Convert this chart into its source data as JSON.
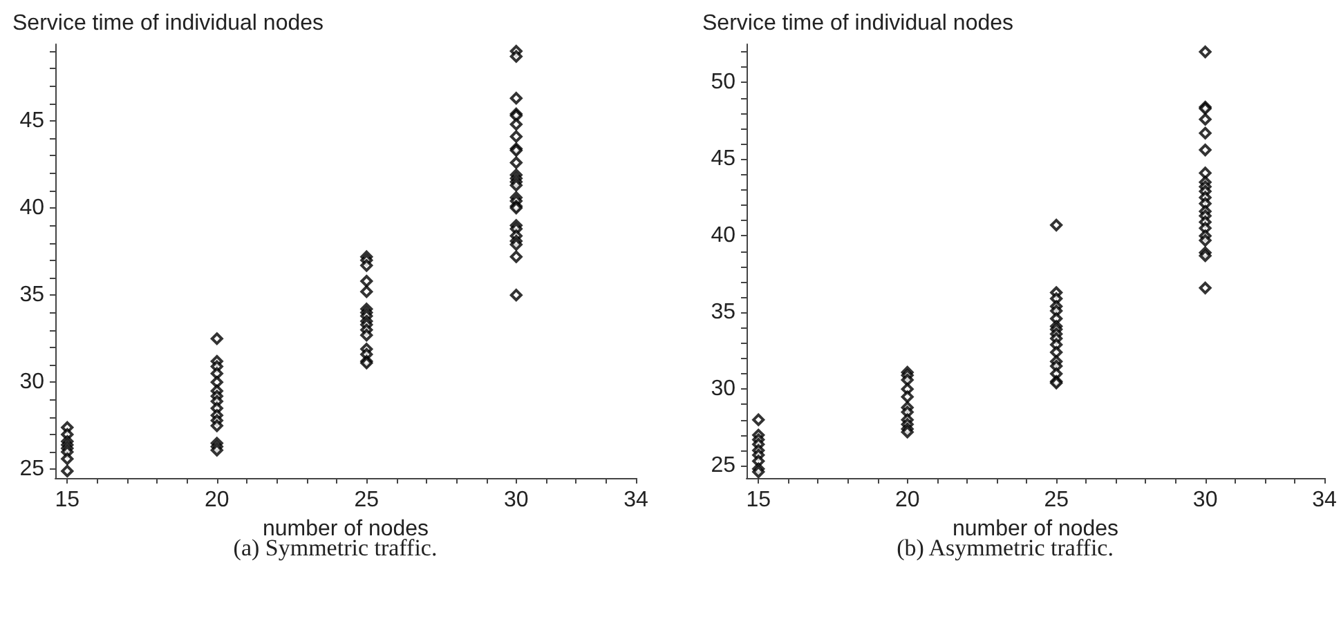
{
  "chart_data": [
    {
      "type": "scatter",
      "title": "Service time of individual nodes",
      "xlabel": "number of nodes",
      "annotations": [
        "(a) Symmetric traffic."
      ],
      "marker": "diamond",
      "grid": false,
      "xlim": [
        14.6,
        34
      ],
      "ylim": [
        24.5,
        49.4
      ],
      "xticks": [
        15,
        {
          "value": 16,
          "label": null
        },
        {
          "value": 17,
          "label": null
        },
        {
          "value": 18,
          "label": null
        },
        {
          "value": 19,
          "label": null
        },
        20,
        {
          "value": 21,
          "label": null
        },
        {
          "value": 22,
          "label": null
        },
        {
          "value": 23,
          "label": null
        },
        {
          "value": 24,
          "label": null
        },
        25,
        {
          "value": 26,
          "label": null
        },
        {
          "value": 27,
          "label": null
        },
        {
          "value": 28,
          "label": null
        },
        {
          "value": 29,
          "label": null
        },
        30,
        {
          "value": 31,
          "label": null
        },
        {
          "value": 32,
          "label": null
        },
        {
          "value": 33,
          "label": null
        },
        34
      ],
      "yticks": [
        25,
        {
          "value": 26,
          "label": null
        },
        {
          "value": 27,
          "label": null
        },
        {
          "value": 28,
          "label": null
        },
        {
          "value": 29,
          "label": null
        },
        30,
        {
          "value": 31,
          "label": null
        },
        {
          "value": 32,
          "label": null
        },
        {
          "value": 33,
          "label": null
        },
        {
          "value": 34,
          "label": null
        },
        35,
        {
          "value": 36,
          "label": null
        },
        {
          "value": 37,
          "label": null
        },
        {
          "value": 38,
          "label": null
        },
        {
          "value": 39,
          "label": null
        },
        40,
        {
          "value": 41,
          "label": null
        },
        {
          "value": 42,
          "label": null
        },
        {
          "value": 43,
          "label": null
        },
        {
          "value": 44,
          "label": null
        },
        45,
        {
          "value": 46,
          "label": null
        },
        {
          "value": 47,
          "label": null
        },
        {
          "value": 48,
          "label": null
        },
        {
          "value": 49,
          "label": null
        }
      ],
      "series": [
        {
          "color": "#000000",
          "x": [
            15,
            15,
            15,
            15,
            15,
            15,
            15,
            15,
            20,
            20,
            20,
            20,
            20,
            20,
            20,
            20,
            20,
            20,
            20,
            20,
            20,
            20,
            20,
            25,
            25,
            25,
            25,
            25,
            25,
            25,
            25,
            25,
            25,
            25,
            25,
            25,
            25,
            25,
            25,
            30,
            30,
            30,
            30,
            30,
            30,
            30,
            30,
            30,
            30,
            30,
            30,
            30,
            30,
            30,
            30,
            30,
            30,
            30,
            30,
            30,
            30,
            30,
            30,
            30
          ],
          "values": [
            27.4,
            27.0,
            26.6,
            26.4,
            26.2,
            26.0,
            25.6,
            24.9,
            32.5,
            31.2,
            30.9,
            30.5,
            30.0,
            29.5,
            29.2,
            28.9,
            28.5,
            28.1,
            27.8,
            27.5,
            26.5,
            26.3,
            26.1,
            37.2,
            37.0,
            36.7,
            35.8,
            35.2,
            34.2,
            34.0,
            33.8,
            33.5,
            33.3,
            33.0,
            32.7,
            31.9,
            31.6,
            31.2,
            31.1,
            49.0,
            48.7,
            46.3,
            45.4,
            45.3,
            44.8,
            44.1,
            43.4,
            43.3,
            42.6,
            41.9,
            41.7,
            41.5,
            41.3,
            40.6,
            40.4,
            40.1,
            40.0,
            39.0,
            38.8,
            38.4,
            38.1,
            37.9,
            37.2,
            35.0
          ]
        }
      ]
    },
    {
      "type": "scatter",
      "title": "Service time of individual nodes",
      "xlabel": "number of nodes",
      "annotations": [
        "(b) Asymmetric traffic."
      ],
      "marker": "diamond",
      "grid": false,
      "xlim": [
        14.6,
        34
      ],
      "ylim": [
        24.2,
        52.5
      ],
      "xticks": [
        15,
        {
          "value": 16,
          "label": null
        },
        {
          "value": 17,
          "label": null
        },
        {
          "value": 18,
          "label": null
        },
        {
          "value": 19,
          "label": null
        },
        20,
        {
          "value": 21,
          "label": null
        },
        {
          "value": 22,
          "label": null
        },
        {
          "value": 23,
          "label": null
        },
        {
          "value": 24,
          "label": null
        },
        25,
        {
          "value": 26,
          "label": null
        },
        {
          "value": 27,
          "label": null
        },
        {
          "value": 28,
          "label": null
        },
        {
          "value": 29,
          "label": null
        },
        30,
        {
          "value": 31,
          "label": null
        },
        {
          "value": 32,
          "label": null
        },
        {
          "value": 33,
          "label": null
        },
        34
      ],
      "yticks": [
        25,
        {
          "value": 26,
          "label": null
        },
        {
          "value": 27,
          "label": null
        },
        {
          "value": 28,
          "label": null
        },
        {
          "value": 29,
          "label": null
        },
        30,
        {
          "value": 31,
          "label": null
        },
        {
          "value": 32,
          "label": null
        },
        {
          "value": 33,
          "label": null
        },
        {
          "value": 34,
          "label": null
        },
        35,
        {
          "value": 36,
          "label": null
        },
        {
          "value": 37,
          "label": null
        },
        {
          "value": 38,
          "label": null
        },
        {
          "value": 39,
          "label": null
        },
        40,
        {
          "value": 41,
          "label": null
        },
        {
          "value": 42,
          "label": null
        },
        {
          "value": 43,
          "label": null
        },
        {
          "value": 44,
          "label": null
        },
        45,
        {
          "value": 46,
          "label": null
        },
        {
          "value": 47,
          "label": null
        },
        {
          "value": 48,
          "label": null
        },
        {
          "value": 49,
          "label": null
        },
        50,
        {
          "value": 51,
          "label": null
        },
        {
          "value": 52,
          "label": null
        }
      ],
      "series": [
        {
          "color": "#000000",
          "x": [
            15,
            15,
            15,
            15,
            15,
            15,
            15,
            15,
            15,
            20,
            20,
            20,
            20,
            20,
            20,
            20,
            20,
            20,
            20,
            20,
            25,
            25,
            25,
            25,
            25,
            25,
            25,
            25,
            25,
            25,
            25,
            25,
            25,
            25,
            25,
            25,
            25,
            30,
            30,
            30,
            30,
            30,
            30,
            30,
            30,
            30,
            30,
            30,
            30,
            30,
            30,
            30,
            30,
            30,
            30,
            30,
            30,
            30
          ],
          "values": [
            28.0,
            27.0,
            26.7,
            26.4,
            26.0,
            25.7,
            25.3,
            24.8,
            24.6,
            31.1,
            30.9,
            30.6,
            30.0,
            29.5,
            28.8,
            28.5,
            28.0,
            27.7,
            27.4,
            27.2,
            40.7,
            36.3,
            35.9,
            35.4,
            35.1,
            34.6,
            34.1,
            33.9,
            33.6,
            33.3,
            32.9,
            32.4,
            31.8,
            31.5,
            31.0,
            30.5,
            30.4,
            52.0,
            48.4,
            48.3,
            47.6,
            46.7,
            45.6,
            44.1,
            43.5,
            43.2,
            42.9,
            42.5,
            42.1,
            41.6,
            41.3,
            40.9,
            40.5,
            40.0,
            39.7,
            38.9,
            38.7,
            36.6
          ]
        }
      ]
    }
  ]
}
